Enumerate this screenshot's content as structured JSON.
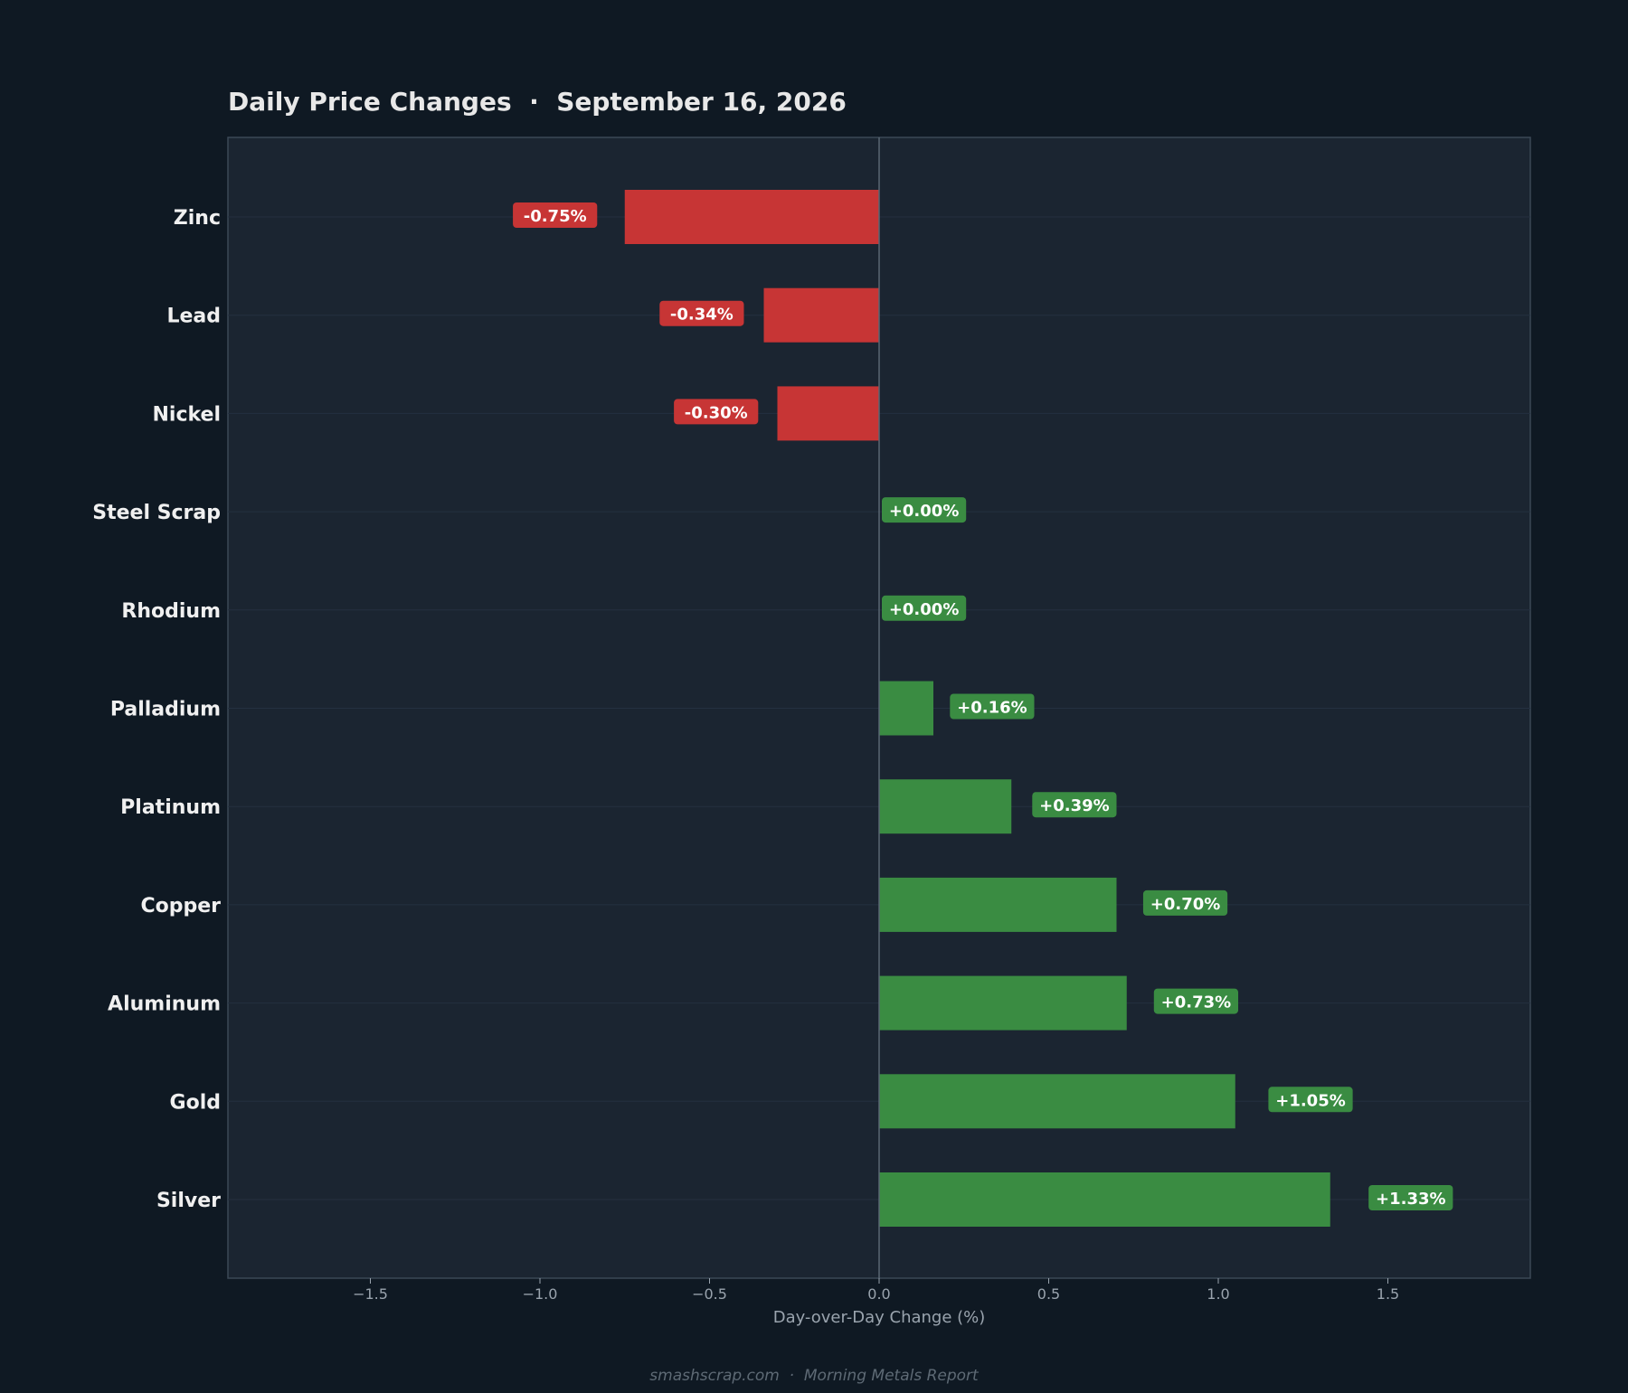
{
  "colors": {
    "page_background": "#0f1923",
    "plot_background": "#1b2531",
    "plot_border": "#3b4956",
    "zero_line": "#5b6773",
    "negative": "#c73535",
    "positive": "#3a8c42",
    "title_text": "#e8e8e8",
    "category_text": "#f0f0f0",
    "tick_text": "#9aa4ae",
    "footer_text": "#5e6a75"
  },
  "chart_data": {
    "type": "bar",
    "orientation": "horizontal",
    "title": "Daily Price Changes  ·  September 16, 2026",
    "xlabel": "Day-over-Day Change (%)",
    "ylabel": "",
    "xlim": [
      -1.92,
      1.92
    ],
    "xticks": [
      -1.5,
      -1.0,
      -0.5,
      0.0,
      0.5,
      1.0,
      1.5
    ],
    "xtick_labels": [
      "−1.5",
      "−1.0",
      "−0.5",
      "0.0",
      "0.5",
      "1.0",
      "1.5"
    ],
    "grid": false,
    "categories": [
      "Zinc",
      "Lead",
      "Nickel",
      "Steel Scrap",
      "Rhodium",
      "Palladium",
      "Platinum",
      "Copper",
      "Aluminum",
      "Gold",
      "Silver"
    ],
    "values": [
      -0.75,
      -0.34,
      -0.3,
      0.0,
      0.0,
      0.16,
      0.39,
      0.7,
      0.73,
      1.05,
      1.33
    ],
    "value_labels": [
      "-0.75%",
      "-0.34%",
      "-0.30%",
      "+0.00%",
      "+0.00%",
      "+0.16%",
      "+0.39%",
      "+0.70%",
      "+0.73%",
      "+1.05%",
      "+1.33%"
    ]
  },
  "footer": {
    "text": "smashscrap.com  ·  Morning Metals Report"
  }
}
